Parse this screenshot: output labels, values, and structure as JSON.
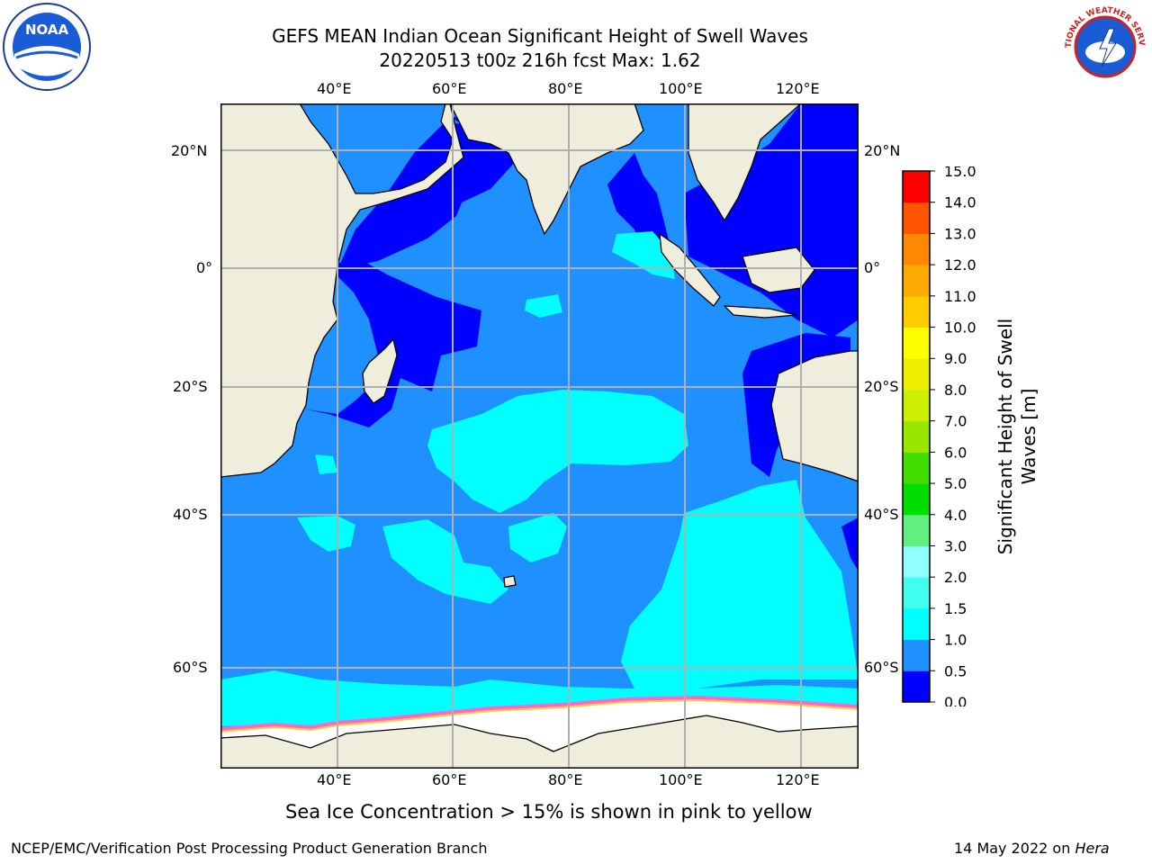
{
  "title_line1": "GEFS MEAN Indian Ocean Significant Height of Swell Waves",
  "title_line2": "20220513 t00z 216h fcst   Max: 1.62",
  "logos": {
    "left": "NOAA",
    "right_text": "NATIONAL WEATHER SERVICE"
  },
  "lon_ticks": [
    "40°E",
    "60°E",
    "80°E",
    "100°E",
    "120°E"
  ],
  "lat_ticks_left": [
    "20°N",
    "0°",
    "20°S",
    "40°S",
    "60°S"
  ],
  "lat_ticks_right": [
    "20°N",
    "0°",
    "20°S",
    "40°S",
    "60°S"
  ],
  "colorbar": {
    "label_line1": "Significant Height of Swell",
    "label_line2": "Waves [m]",
    "ticks": [
      "0.0",
      "0.5",
      "1.0",
      "1.5",
      "2.0",
      "3.0",
      "4.0",
      "5.0",
      "6.0",
      "7.0",
      "8.0",
      "9.0",
      "10.0",
      "11.0",
      "12.0",
      "13.0",
      "14.0",
      "15.0"
    ],
    "colors": [
      "#0000ff",
      "#1e90ff",
      "#00ffff",
      "#40ffee",
      "#90ffff",
      "#60f080",
      "#00dd00",
      "#44dd00",
      "#99e600",
      "#ccee00",
      "#eeee00",
      "#ffff00",
      "#ffcc00",
      "#ffaa00",
      "#ff8800",
      "#ff5500",
      "#ff0000"
    ]
  },
  "map_colors": {
    "land": "#efeedd",
    "dark_sea": "#0000ff",
    "mid_sea": "#1e90ff",
    "light_sea": "#00ffff",
    "ice": "#ffffff",
    "ice_edge": "#ff66cc",
    "grid": "#b0b0b0"
  },
  "caption": "Sea Ice Concentration > 15% is shown in pink to yellow",
  "footer_left": "NCEP/EMC/Verification Post Processing Product Generation Branch",
  "footer_right_prefix": "14 May 2022 on ",
  "footer_right_italic": "Hera"
}
